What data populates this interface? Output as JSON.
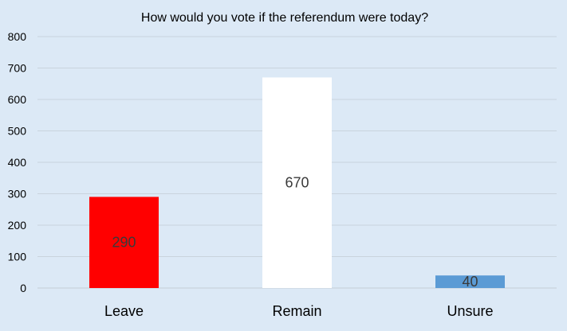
{
  "chart_data": {
    "type": "bar",
    "title": "How would you vote if the referendum were today?",
    "xlabel": "",
    "ylabel": "",
    "categories": [
      "Leave",
      "Remain",
      "Unsure"
    ],
    "values": [
      290,
      670,
      40
    ],
    "bar_colors": [
      "#ff0000",
      "#ffffff",
      "#5b9bd5"
    ],
    "data_labels": [
      "290",
      "670",
      "40"
    ],
    "ylim": [
      0,
      800
    ],
    "yticks": [
      0,
      100,
      200,
      300,
      400,
      500,
      600,
      700,
      800
    ],
    "grid": true,
    "legend": "none"
  },
  "colors": {
    "background": "#dce9f6",
    "gridline": "#c9d3dd"
  }
}
